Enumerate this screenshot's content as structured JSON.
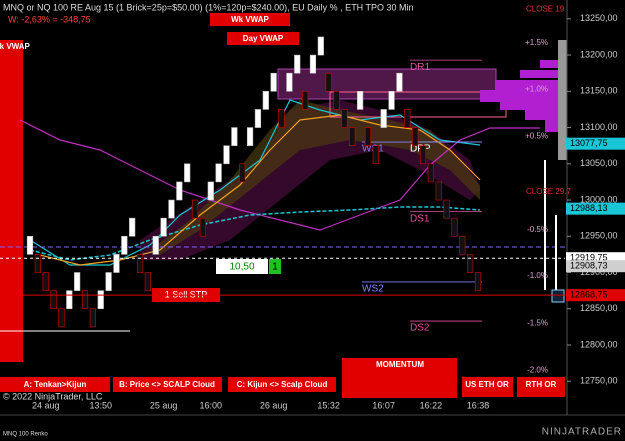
{
  "header": {
    "title": "MNQ or NQ 100 RE Aug 15 (1 Brick=25p=$50.00) (1%=120p=$240.00), EU Daily % , ETH TPO 30 Min",
    "weekly_change": "W: -2,63% = -348,75"
  },
  "chart_data": {
    "type": "renko",
    "open": [
      12925,
      12925,
      12900,
      12875,
      12850,
      12850,
      12875,
      12875,
      12850,
      12850,
      12875,
      12900,
      12925,
      12950,
      12925,
      12900,
      12925,
      12950,
      12975,
      13000,
      13025,
      13000,
      12975,
      13000,
      13025,
      13050,
      13075,
      13050,
      13075,
      13100,
      13125,
      13150,
      13125,
      13150,
      13175,
      13150,
      13175,
      13200,
      13175,
      13150,
      13125,
      13100,
      13125,
      13100,
      13075,
      13100,
      13125,
      13150,
      13125,
      13100,
      13075,
      13050,
      13025,
      13000,
      12975,
      12950,
      12925,
      12900
    ],
    "close": [
      12950,
      12900,
      12875,
      12850,
      12825,
      12875,
      12900,
      12850,
      12825,
      12875,
      12900,
      12925,
      12950,
      12975,
      12900,
      12875,
      12950,
      12975,
      13000,
      13025,
      13050,
      12975,
      12950,
      13025,
      13050,
      13075,
      13100,
      13025,
      13100,
      13125,
      13150,
      13175,
      13100,
      13175,
      13200,
      13125,
      13200,
      13225,
      13150,
      13125,
      13100,
      13075,
      13150,
      13075,
      13050,
      13125,
      13150,
      13175,
      13100,
      13075,
      13050,
      13025,
      13000,
      12975,
      12950,
      12925,
      12900,
      12875
    ],
    "categories": [
      null,
      null,
      "24 aug",
      null,
      null,
      null,
      null,
      null,
      null,
      "13:50",
      null,
      null,
      null,
      null,
      null,
      null,
      null,
      "25 aug",
      null,
      null,
      null,
      null,
      null,
      "16:00",
      null,
      null,
      null,
      null,
      null,
      null,
      null,
      "26 aug",
      null,
      null,
      null,
      null,
      null,
      null,
      "15:32",
      null,
      null,
      null,
      null,
      null,
      null,
      "16:07",
      null,
      null,
      null,
      null,
      null,
      "16:22",
      null,
      null,
      null,
      null,
      null,
      "16:38"
    ],
    "up_color": "#ffffff",
    "down_color": "#111111",
    "ylim": [
      12731,
      13276
    ],
    "yticks": [
      {
        "value": 12750,
        "label": "12750,00"
      },
      {
        "value": 12800,
        "label": "12800,00"
      },
      {
        "value": 12850,
        "label": "12850,00"
      },
      {
        "value": 12900,
        "label": "12900,00"
      },
      {
        "value": 12950,
        "label": "12950,00"
      },
      {
        "value": 13000,
        "label": "13000,00"
      },
      {
        "value": 13050,
        "label": "13050,00"
      },
      {
        "value": 13100,
        "label": "13100,00"
      },
      {
        "value": 13150,
        "label": "13150,00"
      },
      {
        "value": 13200,
        "label": "13200,00"
      },
      {
        "value": 13250,
        "label": "13250,00"
      }
    ],
    "price_labels": [
      {
        "value": 13077.75,
        "label": "13077,75",
        "color": "#19c6d6"
      },
      {
        "value": 12988.13,
        "label": "12988,13",
        "color": "#19c6d6"
      },
      {
        "value": 12919.75,
        "label": "12919,75",
        "color": "#ffffff"
      },
      {
        "value": 12908.73,
        "label": "12908,73",
        "color": "#cfcfcf"
      },
      {
        "value": 12868.75,
        "label": "12868,75",
        "color": "#e00000"
      }
    ],
    "pct_levels": [
      {
        "value": 13217,
        "label": "+1.5%"
      },
      {
        "value": 13153,
        "label": "+1.0%"
      },
      {
        "value": 13088,
        "label": "+0.5%"
      },
      {
        "value": 12959,
        "label": "-0.5%"
      },
      {
        "value": 12895,
        "label": "-1.0%"
      },
      {
        "value": 12830,
        "label": "-1.5%"
      },
      {
        "value": 12765,
        "label": "-2.0%"
      }
    ],
    "close_levels": [
      {
        "value": 13263,
        "label": "CLOSE 19"
      },
      {
        "value": 13011,
        "label": "CLOSE 29.7"
      }
    ],
    "pivots": [
      {
        "value": 13193,
        "label": "DR1",
        "color": "#e050a0"
      },
      {
        "value": 13080,
        "label": "DPP",
        "color": "#ffffff"
      },
      {
        "value": 13080,
        "label": "WS1",
        "color": "#8080ff"
      },
      {
        "value": 12984,
        "label": "DS1",
        "color": "#e050a0"
      },
      {
        "value": 12887,
        "label": "WS2",
        "color": "#8080ff"
      },
      {
        "value": 12833,
        "label": "DS2",
        "color": "#e050a0"
      }
    ]
  },
  "annotations": {
    "wk_vwap": "Wk VWAP",
    "day_vwap": "Day VWAP",
    "left_wk_vwap": "Wk VWAP",
    "order_qty": "10,50",
    "order_count": "1",
    "sell_stop": "1 Sell STP"
  },
  "buttons": {
    "a": "A: Tenkan>Kijun",
    "b": "B: Price <> SCALP Cloud",
    "c": "C: Kijun <> Scalp Cloud",
    "momentum": "MOMENTUM",
    "us_eth_or": "US ETH OR",
    "rth_or": "RTH OR"
  },
  "footer": {
    "copyright": "© 2022 NinjaTrader, LLC",
    "instrument": "MNQ 100 Renko",
    "brand": "NINJATRADER"
  }
}
